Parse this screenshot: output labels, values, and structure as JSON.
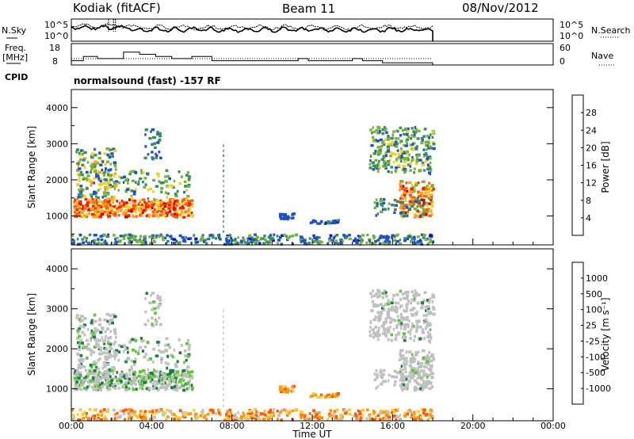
{
  "header": {
    "station": "Kodiak (fitACF)",
    "beam": "Beam 11",
    "date": "08/Nov/2012",
    "cpid_label": "CPID",
    "cpid_value": "normalsound (fast) -157 RF"
  },
  "colors": {
    "power_scale": [
      "#0a0adc",
      "#2050c8",
      "#3c8c64",
      "#78b43c",
      "#f0d020",
      "#ffa020",
      "#ff6010",
      "#ff2000",
      "#d40000"
    ],
    "velocity_scale": [
      "#1a2ad2",
      "#2848b4",
      "#1e7a46",
      "#5ac832",
      "#c8c8c8",
      "#ffc832",
      "#ff9614",
      "#ff5a00",
      "#e60000"
    ],
    "ground_scatter": "#c0c0c0"
  },
  "chart_data": [
    {
      "type": "line",
      "name_panel": "noise",
      "left_label_1": "N.Sky",
      "right_label": "N.Search",
      "yticks_left": [
        "10^5",
        "10^0"
      ],
      "yticks_right": [
        "10^5",
        "10^0"
      ]
    },
    {
      "type": "line",
      "name_panel": "frequency",
      "left_label_1": "Freq.",
      "left_label_2": "[MHz]",
      "right_label": "Nave",
      "yticks_left": [
        18,
        8
      ],
      "yticks_right": [
        60,
        0
      ],
      "freq_steps": [
        [
          0.0,
          10
        ],
        [
          0.6,
          12
        ],
        [
          1.3,
          11
        ],
        [
          2.6,
          14
        ],
        [
          3.4,
          13
        ],
        [
          4.2,
          12
        ],
        [
          5.0,
          11
        ],
        [
          6.0,
          12
        ],
        [
          7.0,
          10
        ],
        [
          11.3,
          11
        ],
        [
          11.8,
          10
        ],
        [
          14.0,
          11
        ],
        [
          14.5,
          10
        ],
        [
          15.5,
          9
        ],
        [
          17.9,
          9
        ]
      ]
    },
    {
      "type": "heatmap",
      "name_panel": "power",
      "ylabel": "Slant Range [km]",
      "yticks": [
        1000,
        2000,
        3000,
        4000
      ],
      "ylim": [
        200,
        4500
      ],
      "colorbar_label": "Power [dB]",
      "colorbar_ticks": [
        4,
        8,
        12,
        16,
        20,
        24,
        28
      ]
    },
    {
      "type": "heatmap",
      "name_panel": "velocity",
      "ylabel": "Slant Range [km]",
      "yticks": [
        1000,
        2000,
        3000,
        4000
      ],
      "ylim": [
        200,
        4500
      ],
      "xlabel": "Time UT",
      "xlim": [
        0,
        24
      ],
      "xticks": [
        "00:00",
        "04:00",
        "08:00",
        "12:00",
        "16:00",
        "20:00",
        "00:00"
      ],
      "colorbar_label": "Velocity [m s⁻¹]",
      "colorbar_ticks": [
        "1000",
        "500",
        "100",
        "25",
        "-25",
        "-100",
        "-500",
        "-1000"
      ]
    }
  ]
}
